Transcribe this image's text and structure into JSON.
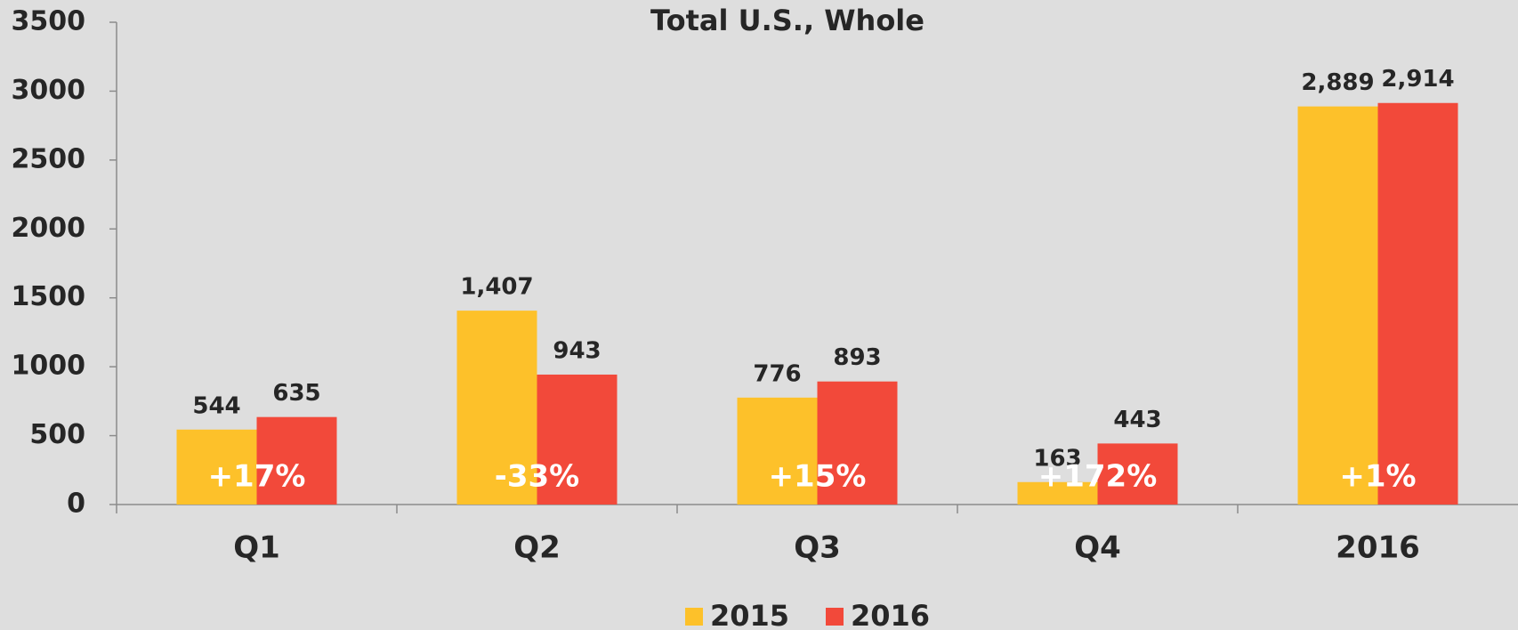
{
  "chart_data": {
    "type": "bar",
    "title": "Total U.S., Whole",
    "categories": [
      "Q1",
      "Q2",
      "Q3",
      "Q4",
      "2016"
    ],
    "series": [
      {
        "name": "2015",
        "color": "#fdc12a",
        "values": [
          544,
          1407,
          776,
          163,
          2889
        ],
        "value_labels": [
          "544",
          "1,407",
          "776",
          "163",
          "2,889"
        ]
      },
      {
        "name": "2016",
        "color": "#f2493a",
        "values": [
          635,
          943,
          893,
          443,
          2914
        ],
        "value_labels": [
          "635",
          "943",
          "893",
          "443",
          "2,914"
        ]
      }
    ],
    "annotations": [
      "+17%",
      "-33%",
      "+15%",
      "+172%",
      "+1%"
    ],
    "ylim": [
      0,
      3500
    ],
    "yticks": [
      0,
      500,
      1000,
      1500,
      2000,
      2500,
      3000,
      3500
    ],
    "grid": false,
    "legend": "bottom"
  }
}
